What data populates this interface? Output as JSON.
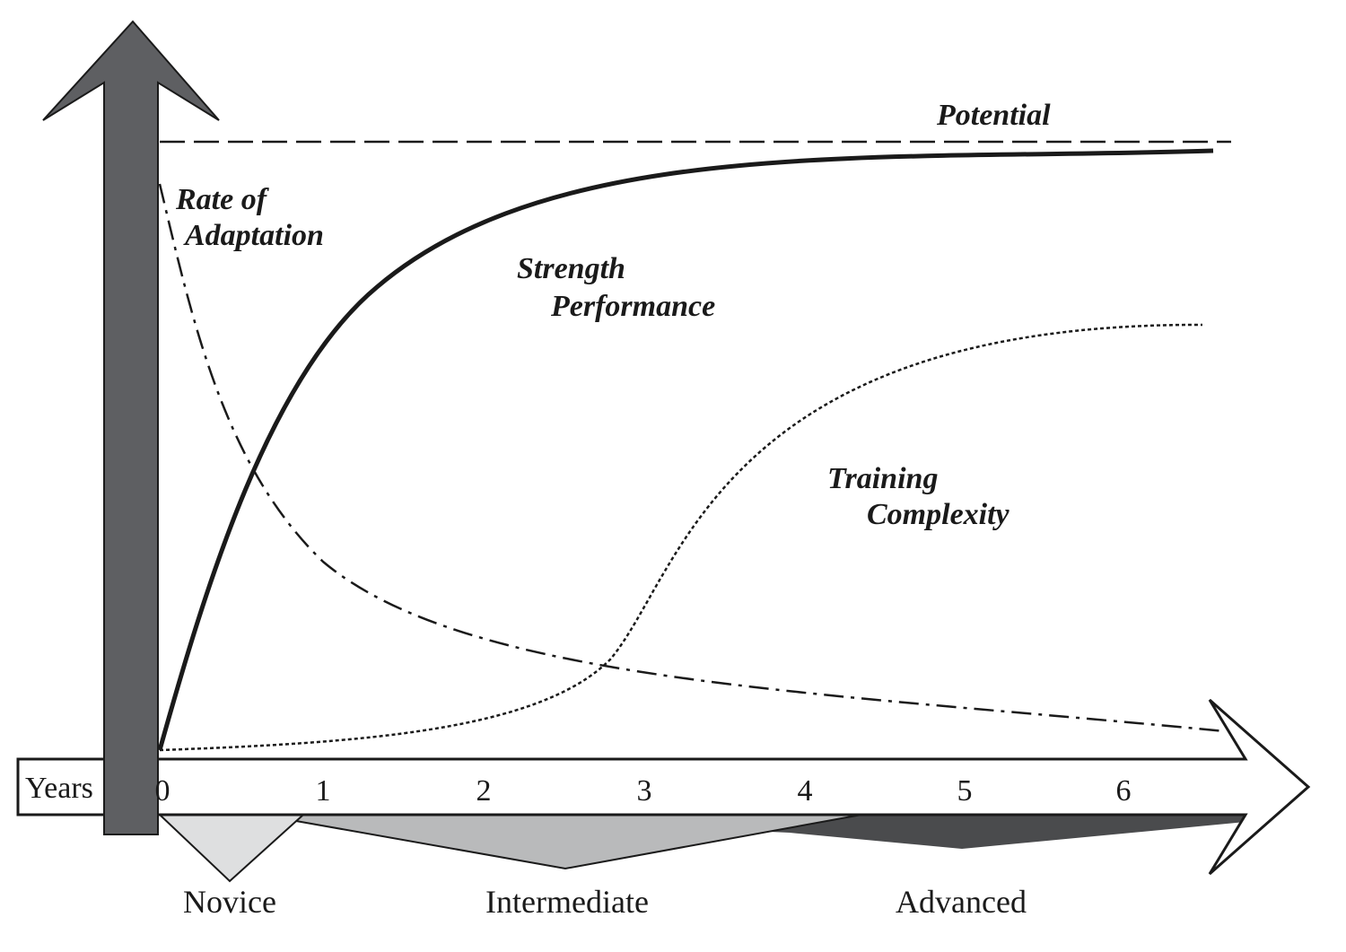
{
  "labels": {
    "potential": "Potential",
    "rate_line1": "Rate of",
    "rate_line2": "Adaptation",
    "strength_line1": "Strength",
    "strength_line2": "Performance",
    "complexity_line1": "Training",
    "complexity_line2": "Complexity"
  },
  "axis": {
    "label": "Years",
    "ticks": [
      "0",
      "1",
      "2",
      "3",
      "4",
      "5",
      "6"
    ]
  },
  "stages": [
    "Novice",
    "Intermediate",
    "Advanced"
  ],
  "colors": {
    "vertical_arrow": "#5e5f62",
    "novice": "#dedfe0",
    "intermediate": "#b9babb",
    "advanced": "#4a4b4d",
    "lines": "#1a1a1a"
  }
}
